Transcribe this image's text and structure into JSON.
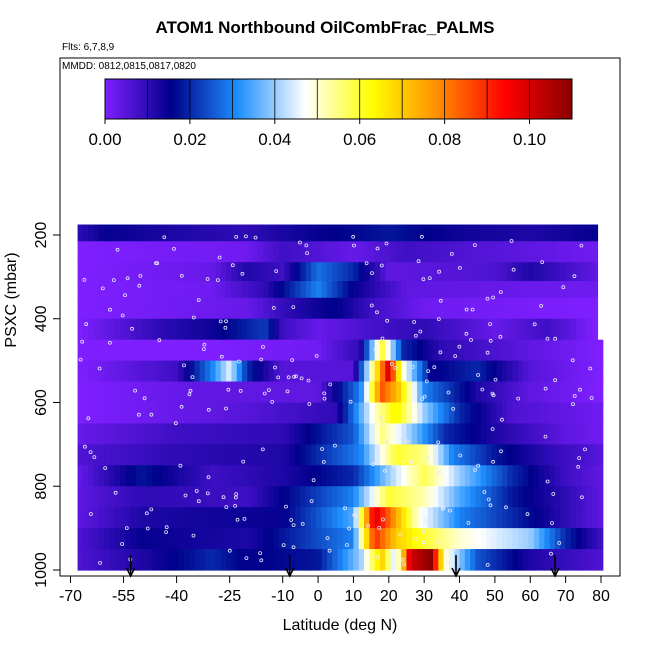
{
  "chart_data": {
    "type": "heatmap",
    "title": "ATOM1 Northbound OilCombFrac_PALMS",
    "flights_label": "Flts: 6,7,8,9",
    "dates_label": "MMDD: 0812,0815,0817,0820",
    "xlabel": "Latitude (deg N)",
    "ylabel": "PSXC (mbar)",
    "xlim": [
      -70,
      80
    ],
    "ylim": [
      1000,
      150
    ],
    "x_ticks": [
      -70,
      -55,
      -40,
      -25,
      -10,
      0,
      10,
      20,
      30,
      40,
      50,
      60,
      70,
      80
    ],
    "x_tick_labels": [
      "-70",
      "-55",
      "-40",
      "-25",
      "-10",
      "0",
      "10",
      "20",
      "30",
      "40",
      "50",
      "60",
      "70",
      "80"
    ],
    "y_ticks": [
      200,
      400,
      600,
      800,
      1000
    ],
    "y_tick_labels": [
      "200",
      "400",
      "600",
      "800",
      "1000"
    ],
    "colorbar": {
      "min": 0.0,
      "max": 0.11,
      "ticks": [
        0.0,
        0.02,
        0.04,
        0.06,
        0.08,
        0.1
      ],
      "tick_labels": [
        "0.00",
        "0.02",
        "0.04",
        "0.06",
        "0.08",
        "0.10"
      ],
      "colors": [
        "#7f1fff",
        "#00008b",
        "#1e90ff",
        "#ffffff",
        "#ffff00",
        "#ff8c00",
        "#ff0000",
        "#8b0000"
      ]
    },
    "value_bands": [
      {
        "pressure_range": [
          175,
          215
        ],
        "lat_range": [
          -68,
          78
        ],
        "profile": [
          [
            -68,
            0.01
          ],
          [
            -60,
            0.015
          ],
          [
            -40,
            0.012
          ],
          [
            -20,
            0.01
          ],
          [
            0,
            0.015
          ],
          [
            20,
            0.018
          ],
          [
            40,
            0.014
          ],
          [
            60,
            0.012
          ],
          [
            78,
            0.015
          ]
        ]
      },
      {
        "pressure_range": [
          215,
          265
        ],
        "lat_range": [
          -68,
          78
        ],
        "profile": [
          [
            -68,
            0.0
          ],
          [
            -20,
            0.002
          ],
          [
            -10,
            0.008
          ],
          [
            10,
            0.003
          ],
          [
            25,
            0.008
          ],
          [
            40,
            0.006
          ],
          [
            60,
            0.004
          ],
          [
            78,
            0.002
          ]
        ]
      },
      {
        "pressure_range": [
          265,
          310
        ],
        "lat_range": [
          -68,
          78
        ],
        "profile": [
          [
            -68,
            0.0
          ],
          [
            -30,
            0.003
          ],
          [
            -20,
            0.012
          ],
          [
            -10,
            0.008
          ],
          [
            0,
            0.028
          ],
          [
            10,
            0.02
          ],
          [
            20,
            0.004
          ],
          [
            50,
            0.006
          ],
          [
            60,
            0.012
          ],
          [
            78,
            0.004
          ]
        ]
      },
      {
        "pressure_range": [
          310,
          350
        ],
        "lat_range": [
          -68,
          78
        ],
        "profile": [
          [
            -68,
            0.0
          ],
          [
            -30,
            0.002
          ],
          [
            -15,
            0.01
          ],
          [
            0,
            0.03
          ],
          [
            10,
            0.015
          ],
          [
            25,
            0.004
          ],
          [
            50,
            0.003
          ],
          [
            78,
            0.002
          ]
        ]
      },
      {
        "pressure_range": [
          350,
          400
        ],
        "lat_range": [
          -68,
          78
        ],
        "profile": [
          [
            -68,
            0.0
          ],
          [
            -20,
            0.003
          ],
          [
            -5,
            0.012
          ],
          [
            5,
            0.016
          ],
          [
            15,
            0.008
          ],
          [
            30,
            0.002
          ],
          [
            78,
            0.0
          ]
        ]
      },
      {
        "pressure_range": [
          400,
          450
        ],
        "lat_range": [
          -68,
          78
        ],
        "profile": [
          [
            -68,
            0.0
          ],
          [
            -45,
            0.01
          ],
          [
            -30,
            0.014
          ],
          [
            -15,
            0.022
          ],
          [
            -10,
            0.008
          ],
          [
            0,
            0.003
          ],
          [
            15,
            0.007
          ],
          [
            30,
            0.01
          ],
          [
            50,
            0.003
          ],
          [
            65,
            0.008
          ],
          [
            78,
            0.0
          ]
        ]
      },
      {
        "pressure_range": [
          450,
          500
        ],
        "lat_range": [
          -68,
          80
        ],
        "profile": [
          [
            -68,
            0.0
          ],
          [
            -30,
            0.0
          ],
          [
            0,
            0.002
          ],
          [
            12,
            0.01
          ],
          [
            18,
            0.06
          ],
          [
            24,
            0.02
          ],
          [
            35,
            0.01
          ],
          [
            60,
            0.004
          ],
          [
            80,
            0.0
          ]
        ]
      },
      {
        "pressure_range": [
          500,
          550
        ],
        "lat_range": [
          -68,
          80
        ],
        "profile": [
          [
            -68,
            0.0
          ],
          [
            -40,
            0.008
          ],
          [
            -30,
            0.03
          ],
          [
            -25,
            0.045
          ],
          [
            -20,
            0.02
          ],
          [
            -10,
            0.005
          ],
          [
            10,
            0.005
          ],
          [
            16,
            0.06
          ],
          [
            20,
            0.1
          ],
          [
            24,
            0.05
          ],
          [
            32,
            0.015
          ],
          [
            45,
            0.02
          ],
          [
            60,
            0.005
          ],
          [
            80,
            0.0
          ]
        ]
      },
      {
        "pressure_range": [
          550,
          600
        ],
        "lat_range": [
          -68,
          80
        ],
        "profile": [
          [
            -68,
            0.0
          ],
          [
            -30,
            0.004
          ],
          [
            0,
            0.004
          ],
          [
            12,
            0.03
          ],
          [
            18,
            0.085
          ],
          [
            23,
            0.07
          ],
          [
            30,
            0.03
          ],
          [
            45,
            0.012
          ],
          [
            60,
            0.004
          ],
          [
            80,
            0.0
          ]
        ]
      },
      {
        "pressure_range": [
          600,
          650
        ],
        "lat_range": [
          -68,
          80
        ],
        "profile": [
          [
            -68,
            0.0
          ],
          [
            -20,
            0.005
          ],
          [
            5,
            0.01
          ],
          [
            16,
            0.05
          ],
          [
            22,
            0.065
          ],
          [
            30,
            0.04
          ],
          [
            40,
            0.02
          ],
          [
            55,
            0.006
          ],
          [
            80,
            0.002
          ]
        ]
      },
      {
        "pressure_range": [
          650,
          700
        ],
        "lat_range": [
          -68,
          80
        ],
        "profile": [
          [
            -68,
            0.003
          ],
          [
            -40,
            0.008
          ],
          [
            -10,
            0.01
          ],
          [
            10,
            0.025
          ],
          [
            18,
            0.055
          ],
          [
            26,
            0.04
          ],
          [
            36,
            0.02
          ],
          [
            50,
            0.012
          ],
          [
            70,
            0.004
          ],
          [
            80,
            0.002
          ]
        ]
      },
      {
        "pressure_range": [
          700,
          750
        ],
        "lat_range": [
          -68,
          80
        ],
        "profile": [
          [
            -68,
            0.006
          ],
          [
            -40,
            0.01
          ],
          [
            -10,
            0.012
          ],
          [
            12,
            0.03
          ],
          [
            22,
            0.06
          ],
          [
            30,
            0.055
          ],
          [
            38,
            0.03
          ],
          [
            50,
            0.018
          ],
          [
            65,
            0.01
          ],
          [
            80,
            0.005
          ]
        ]
      },
      {
        "pressure_range": [
          750,
          800
        ],
        "lat_range": [
          -68,
          80
        ],
        "profile": [
          [
            -68,
            0.003
          ],
          [
            -50,
            0.018
          ],
          [
            -30,
            0.008
          ],
          [
            -10,
            0.012
          ],
          [
            10,
            0.02
          ],
          [
            20,
            0.04
          ],
          [
            30,
            0.058
          ],
          [
            40,
            0.04
          ],
          [
            55,
            0.02
          ],
          [
            70,
            0.008
          ],
          [
            80,
            0.004
          ]
        ]
      },
      {
        "pressure_range": [
          800,
          850
        ],
        "lat_range": [
          -68,
          80
        ],
        "profile": [
          [
            -68,
            0.004
          ],
          [
            -50,
            0.01
          ],
          [
            -20,
            0.008
          ],
          [
            10,
            0.03
          ],
          [
            20,
            0.06
          ],
          [
            30,
            0.052
          ],
          [
            40,
            0.035
          ],
          [
            55,
            0.018
          ],
          [
            70,
            0.01
          ],
          [
            80,
            0.004
          ]
        ]
      },
      {
        "pressure_range": [
          850,
          900
        ],
        "lat_range": [
          -68,
          80
        ],
        "profile": [
          [
            -68,
            0.004
          ],
          [
            -50,
            0.012
          ],
          [
            -10,
            0.015
          ],
          [
            10,
            0.035
          ],
          [
            16,
            0.1
          ],
          [
            22,
            0.075
          ],
          [
            28,
            0.05
          ],
          [
            40,
            0.03
          ],
          [
            55,
            0.02
          ],
          [
            70,
            0.01
          ],
          [
            80,
            0.004
          ]
        ]
      },
      {
        "pressure_range": [
          900,
          950
        ],
        "lat_range": [
          -68,
          80
        ],
        "profile": [
          [
            -68,
            0.006
          ],
          [
            -50,
            0.015
          ],
          [
            -20,
            0.012
          ],
          [
            10,
            0.03
          ],
          [
            16,
            0.09
          ],
          [
            22,
            0.07
          ],
          [
            30,
            0.06
          ],
          [
            40,
            0.05
          ],
          [
            50,
            0.045
          ],
          [
            60,
            0.04
          ],
          [
            70,
            0.02
          ],
          [
            80,
            0.008
          ]
        ]
      },
      {
        "pressure_range": [
          950,
          1000
        ],
        "lat_range": [
          -68,
          80
        ],
        "profile": [
          [
            -68,
            0.006
          ],
          [
            -50,
            0.012
          ],
          [
            -30,
            0.02
          ],
          [
            -20,
            0.015
          ],
          [
            0,
            0.018
          ],
          [
            12,
            0.04
          ],
          [
            18,
            0.07
          ],
          [
            22,
            0.04
          ],
          [
            26,
            0.1
          ],
          [
            32,
            0.11
          ],
          [
            36,
            0.05
          ],
          [
            45,
            0.025
          ],
          [
            60,
            0.012
          ],
          [
            80,
            0.006
          ]
        ]
      }
    ],
    "arrow_latitudes": [
      -53,
      -8,
      39,
      67
    ]
  }
}
